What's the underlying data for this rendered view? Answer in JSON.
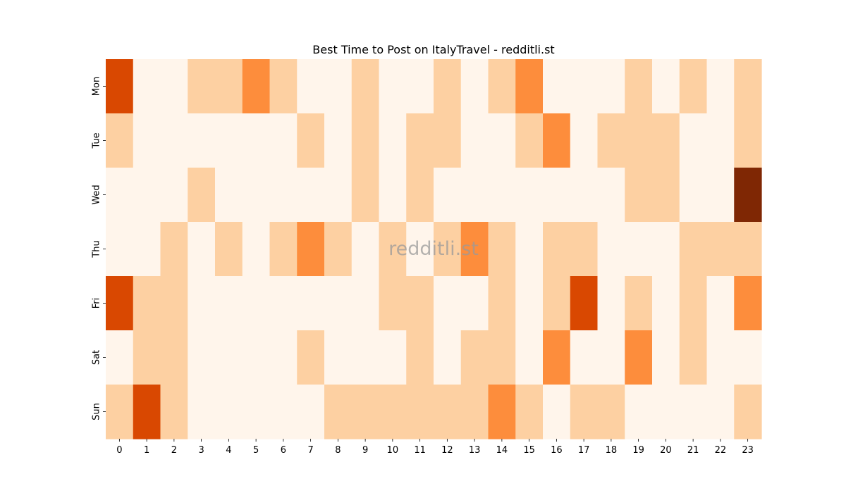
{
  "chart_data": {
    "type": "heatmap",
    "title": "Best Time to Post on ItalyTravel - redditli.st",
    "watermark": "redditli.st",
    "xlabel": "",
    "ylabel": "",
    "x_categories": [
      "0",
      "1",
      "2",
      "3",
      "4",
      "5",
      "6",
      "7",
      "8",
      "9",
      "10",
      "11",
      "12",
      "13",
      "14",
      "15",
      "16",
      "17",
      "18",
      "19",
      "20",
      "21",
      "22",
      "23"
    ],
    "y_categories": [
      "Mon",
      "Tue",
      "Wed",
      "Thu",
      "Fri",
      "Sat",
      "Sun"
    ],
    "colormap": "Oranges",
    "value_range": [
      0,
      4
    ],
    "values": [
      [
        3,
        0,
        0,
        1,
        1,
        2,
        1,
        0,
        0,
        1,
        0,
        0,
        1,
        0,
        1,
        2,
        0,
        0,
        0,
        1,
        0,
        1,
        0,
        1
      ],
      [
        1,
        0,
        0,
        0,
        0,
        0,
        0,
        1,
        0,
        1,
        0,
        1,
        1,
        0,
        0,
        1,
        2,
        0,
        1,
        1,
        1,
        0,
        0,
        1
      ],
      [
        0,
        0,
        0,
        1,
        0,
        0,
        0,
        0,
        0,
        1,
        0,
        1,
        0,
        0,
        0,
        0,
        0,
        0,
        0,
        1,
        1,
        0,
        0,
        4
      ],
      [
        0,
        0,
        1,
        0,
        1,
        0,
        1,
        2,
        1,
        0,
        1,
        0,
        1,
        2,
        1,
        0,
        1,
        1,
        0,
        0,
        0,
        1,
        1,
        1
      ],
      [
        3,
        1,
        1,
        0,
        0,
        0,
        0,
        0,
        0,
        0,
        1,
        1,
        0,
        0,
        1,
        0,
        1,
        3,
        0,
        1,
        0,
        1,
        0,
        2
      ],
      [
        0,
        1,
        1,
        0,
        0,
        0,
        0,
        1,
        0,
        0,
        0,
        1,
        0,
        1,
        1,
        0,
        2,
        0,
        0,
        2,
        0,
        1,
        0,
        0
      ],
      [
        1,
        3,
        1,
        0,
        0,
        0,
        0,
        0,
        1,
        1,
        1,
        1,
        1,
        1,
        2,
        1,
        0,
        1,
        1,
        0,
        0,
        0,
        0,
        1
      ]
    ],
    "level_colors": [
      "#fff5eb",
      "#fdd0a2",
      "#fd8d3c",
      "#d94801",
      "#7f2704"
    ]
  }
}
